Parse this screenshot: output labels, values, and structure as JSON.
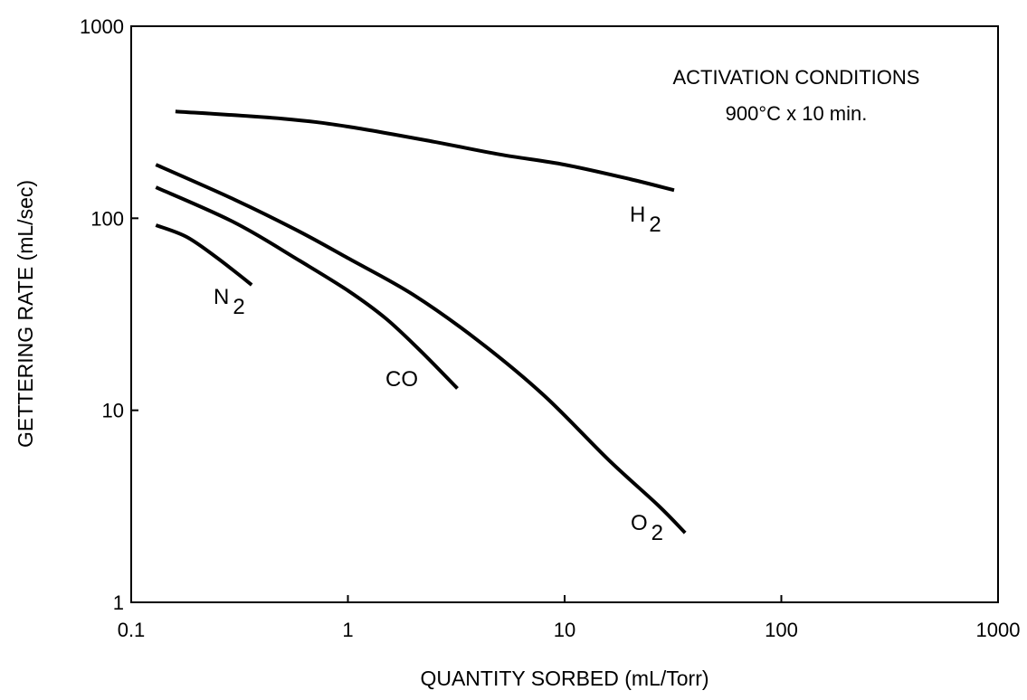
{
  "chart_data": {
    "type": "line",
    "xlabel": "QUANTITY SORBED (mL/Torr)",
    "ylabel": "GETTERING RATE (mL/sec)",
    "xscale": "log",
    "yscale": "log",
    "xlim": [
      0.1,
      1000
    ],
    "ylim": [
      1,
      1000
    ],
    "x_ticks": [
      {
        "value": 0.1,
        "label": "0.1"
      },
      {
        "value": 1,
        "label": "1"
      },
      {
        "value": 10,
        "label": "10"
      },
      {
        "value": 100,
        "label": "100"
      },
      {
        "value": 1000,
        "label": "1000"
      }
    ],
    "y_ticks": [
      {
        "value": 1,
        "label": "1"
      },
      {
        "value": 10,
        "label": "10"
      },
      {
        "value": 100,
        "label": "100"
      },
      {
        "value": 1000,
        "label": "1000"
      }
    ],
    "grid": false,
    "annotation": {
      "line1": "ACTIVATION CONDITIONS",
      "line2": "900°C x 10 min."
    },
    "series": [
      {
        "name": "H2",
        "label_main": "H",
        "label_sub": "2",
        "points": [
          [
            0.16,
            360
          ],
          [
            0.5,
            330
          ],
          [
            1.0,
            300
          ],
          [
            2.5,
            250
          ],
          [
            5.0,
            215
          ],
          [
            10.0,
            190
          ],
          [
            20.0,
            160
          ],
          [
            32.0,
            140
          ]
        ]
      },
      {
        "name": "O2",
        "label_main": "O",
        "label_sub": "2",
        "points": [
          [
            0.13,
            190
          ],
          [
            0.3,
            125
          ],
          [
            0.6,
            85
          ],
          [
            1.0,
            62
          ],
          [
            2.0,
            40
          ],
          [
            4.0,
            23
          ],
          [
            8.0,
            12
          ],
          [
            16.0,
            5.5
          ],
          [
            27.0,
            3.2
          ],
          [
            36.0,
            2.3
          ]
        ]
      },
      {
        "name": "CO",
        "label_main": "CO",
        "label_sub": "",
        "points": [
          [
            0.13,
            145
          ],
          [
            0.3,
            95
          ],
          [
            0.6,
            60
          ],
          [
            1.0,
            42
          ],
          [
            1.5,
            30
          ],
          [
            2.2,
            20
          ],
          [
            3.2,
            13
          ]
        ]
      },
      {
        "name": "N2",
        "label_main": "N",
        "label_sub": "2",
        "points": [
          [
            0.13,
            92
          ],
          [
            0.18,
            80
          ],
          [
            0.25,
            62
          ],
          [
            0.36,
            45
          ]
        ]
      }
    ]
  }
}
